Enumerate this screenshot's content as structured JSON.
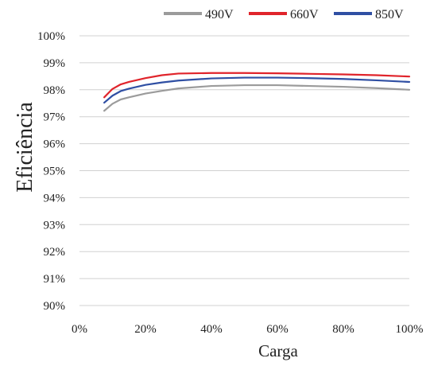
{
  "chart_data": {
    "type": "line",
    "title": "",
    "xlabel": "Carga",
    "ylabel": "Eficiência",
    "xlim": [
      0,
      100
    ],
    "ylim": [
      90,
      100
    ],
    "x_ticks": [
      0,
      20,
      40,
      60,
      80,
      100
    ],
    "x_tick_labels": [
      "0%",
      "20%",
      "40%",
      "60%",
      "80%",
      "100%"
    ],
    "y_ticks": [
      90,
      91,
      92,
      93,
      94,
      95,
      96,
      97,
      98,
      99,
      100
    ],
    "y_tick_labels": [
      "90%",
      "91%",
      "92%",
      "93%",
      "94%",
      "95%",
      "96%",
      "97%",
      "98%",
      "99%",
      "100%"
    ],
    "grid": "horizontal",
    "legend_position": "top-right",
    "series": [
      {
        "name": "490V",
        "color": "#9b9b9b",
        "x": [
          7.5,
          10,
          12.5,
          15,
          20,
          25,
          30,
          40,
          50,
          60,
          70,
          80,
          90,
          100
        ],
        "y": [
          97.22,
          97.48,
          97.64,
          97.72,
          97.86,
          97.96,
          98.05,
          98.14,
          98.17,
          98.17,
          98.14,
          98.11,
          98.06,
          98.0
        ]
      },
      {
        "name": "660V",
        "color": "#e0242b",
        "x": [
          7.5,
          10,
          12.5,
          15,
          20,
          25,
          30,
          40,
          50,
          60,
          70,
          80,
          90,
          100
        ],
        "y": [
          97.72,
          98.03,
          98.2,
          98.29,
          98.43,
          98.54,
          98.6,
          98.62,
          98.62,
          98.61,
          98.59,
          98.57,
          98.54,
          98.49
        ]
      },
      {
        "name": "850V",
        "color": "#2f4fa3",
        "x": [
          7.5,
          10,
          12.5,
          15,
          20,
          25,
          30,
          40,
          50,
          60,
          70,
          80,
          90,
          100
        ],
        "y": [
          97.52,
          97.78,
          97.95,
          98.04,
          98.18,
          98.27,
          98.34,
          98.42,
          98.45,
          98.45,
          98.43,
          98.4,
          98.35,
          98.29
        ]
      }
    ]
  }
}
